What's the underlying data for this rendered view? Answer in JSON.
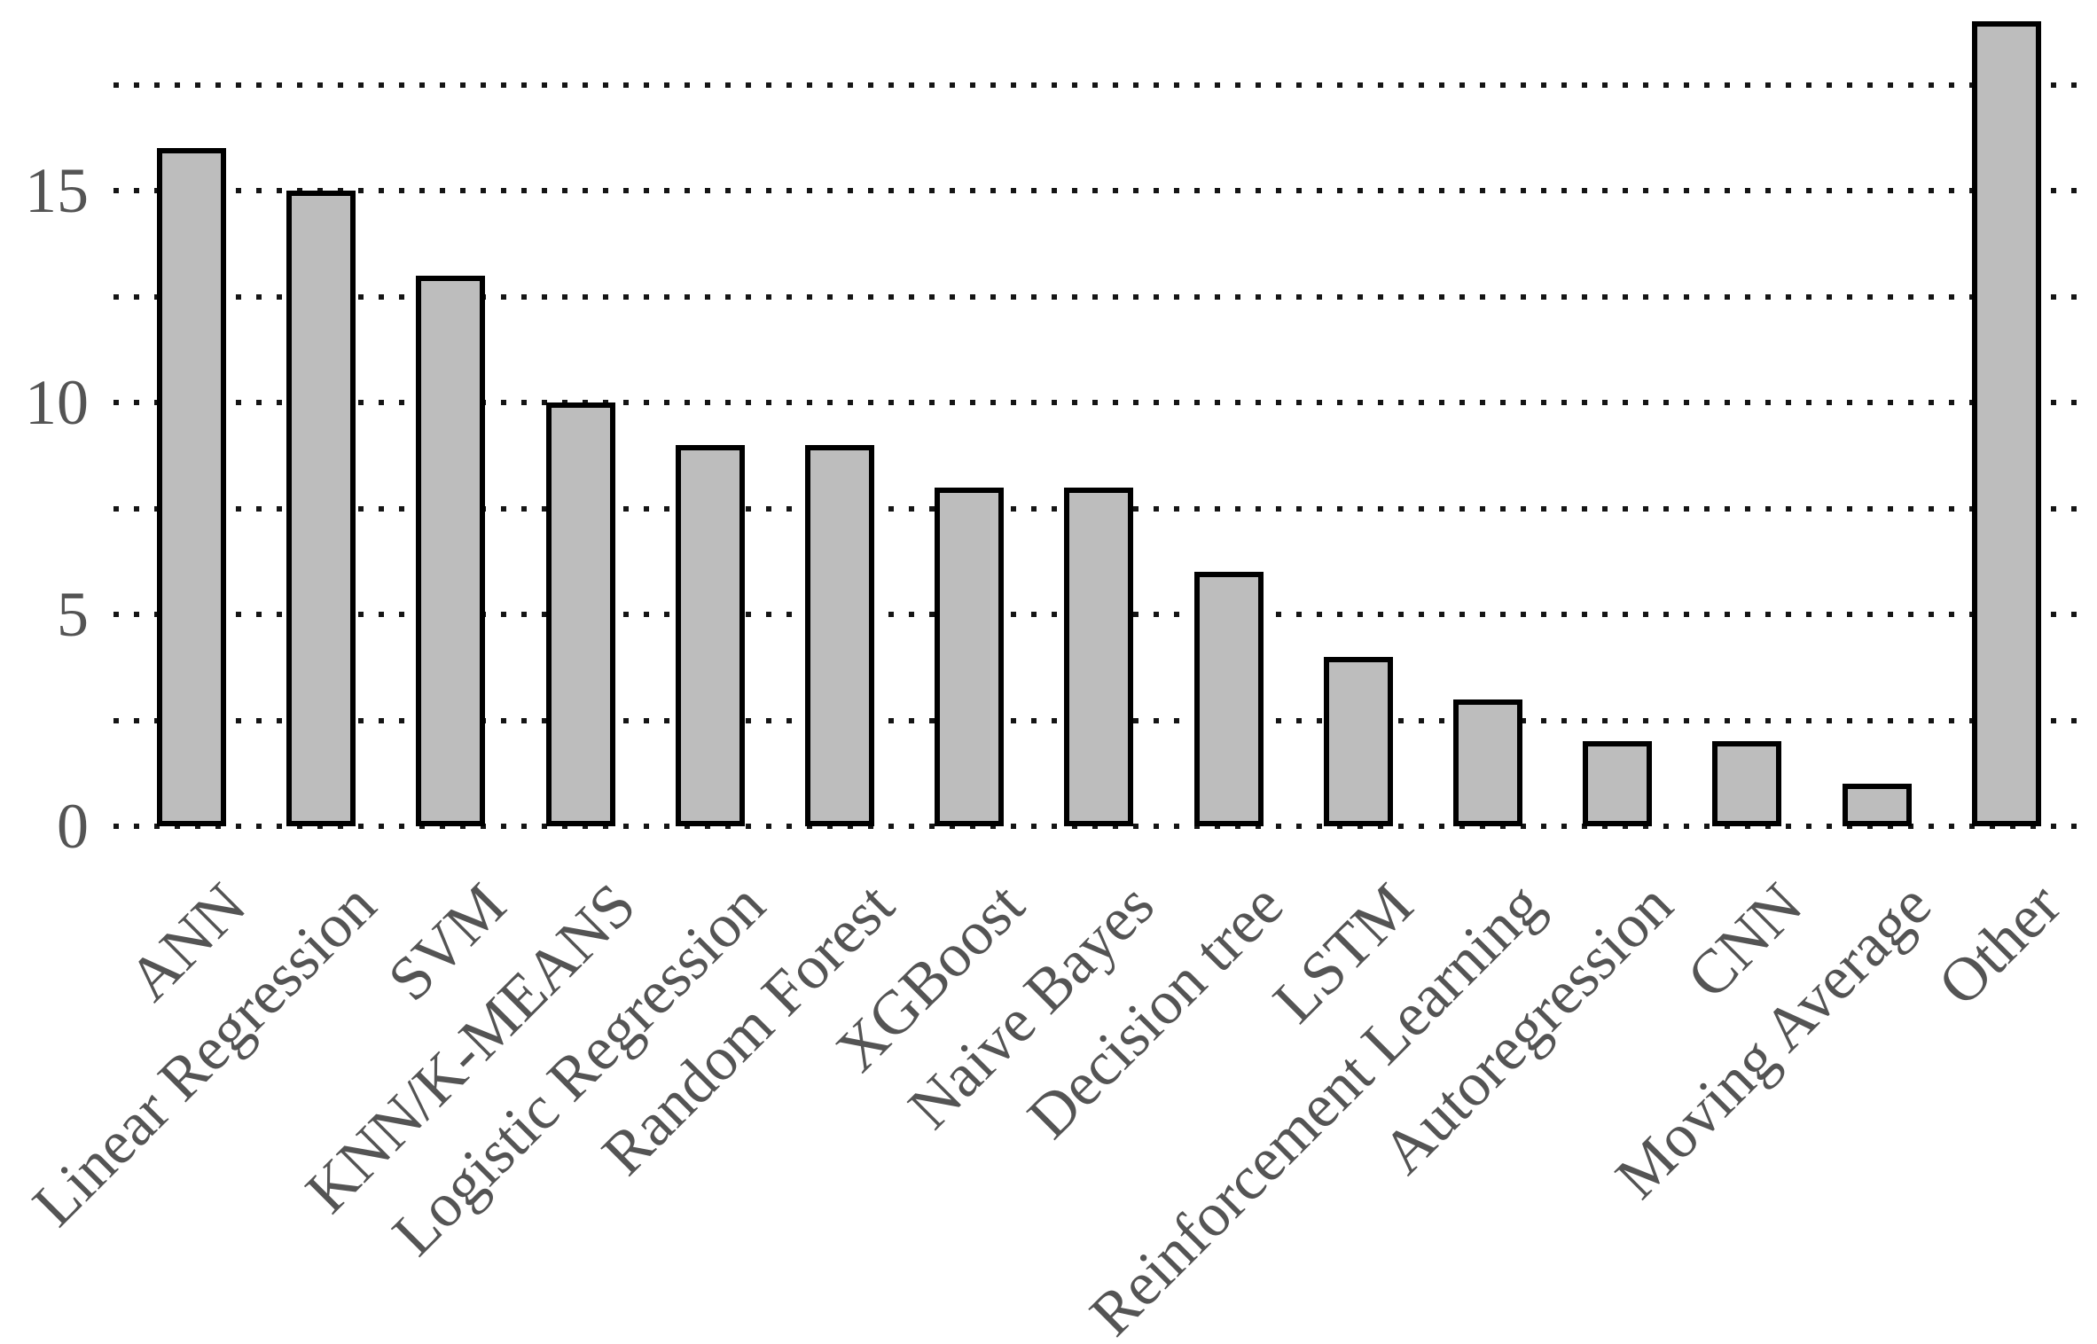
{
  "figure": {
    "background": "#ffffff",
    "title": "",
    "legend": "none"
  },
  "chart_data": {
    "type": "bar",
    "title": "",
    "xlabel": "",
    "ylabel": "",
    "categories": [
      "ANN",
      "Linear Regression",
      "SVM",
      "KNN/K-MEANS",
      "Logistic Regression",
      "Random Forest",
      "XGBoost",
      "Naive Bayes",
      "Decision tree",
      "LSTM",
      "Reinforcement Learning",
      "Autoregression",
      "CNN",
      "Moving Average",
      "Other"
    ],
    "values": [
      16,
      15,
      13,
      10,
      9,
      9,
      8,
      8,
      6,
      4,
      3,
      2,
      2,
      1,
      19
    ],
    "ylim": [
      0,
      19.5
    ],
    "yticks": [
      "0",
      "5",
      "10",
      "15"
    ],
    "ytick_values": [
      0,
      5,
      10,
      15
    ],
    "gridline_values": [
      0,
      2.5,
      5,
      7.5,
      10,
      12.5,
      15,
      17.5
    ],
    "grid_style": "dotted",
    "grid_on": true,
    "legend_position": "none",
    "x_tick_rotation_deg": 45,
    "bar_fill_color": "#bdbdbd",
    "bar_border_color": "#000000",
    "grid_dot_color": "#151515",
    "tick_label_color": "#545454"
  }
}
